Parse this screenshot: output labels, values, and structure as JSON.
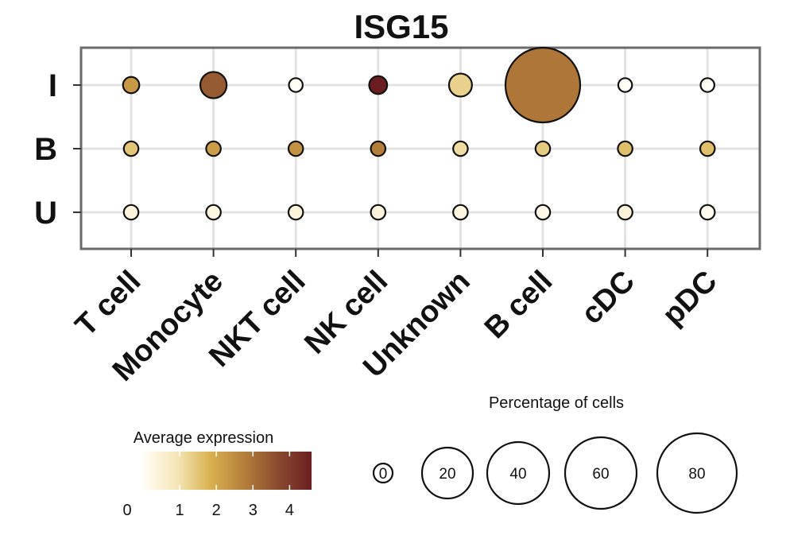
{
  "chart_data": {
    "type": "dot",
    "title": "ISG15",
    "xlabel": "",
    "ylabel": "",
    "categories": [
      "T cell",
      "Monocyte",
      "NKT cell",
      "NK cell",
      "Unknown",
      "B cell",
      "cDC",
      "pDC"
    ],
    "groups": [
      "I",
      "B",
      "U"
    ],
    "grid": true,
    "series": [
      {
        "group": "I",
        "expression": [
          2.3,
          3.4,
          0.0,
          4.6,
          1.3,
          2.9,
          0.0,
          0.0
        ],
        "percentage": [
          10,
          22,
          7,
          12,
          18,
          80,
          7,
          7
        ]
      },
      {
        "group": "B",
        "expression": [
          1.5,
          2.2,
          2.4,
          2.8,
          1.1,
          1.4,
          1.6,
          1.6
        ],
        "percentage": [
          8,
          8,
          8,
          8,
          8,
          8,
          8,
          8
        ]
      },
      {
        "group": "U",
        "expression": [
          0.4,
          0.3,
          0.4,
          0.4,
          0.3,
          0.2,
          0.4,
          0.1
        ],
        "percentage": [
          8,
          8,
          8,
          8,
          8,
          8,
          8,
          8
        ]
      }
    ],
    "color_legend": {
      "title": "Average expression",
      "ticks": [
        0,
        1,
        2,
        3,
        4
      ],
      "range": [
        0,
        4.6
      ],
      "colors": [
        "#fffdf5",
        "#f5e6b8",
        "#d9b14f",
        "#b57f3b",
        "#8a4b2f",
        "#6b1e22"
      ]
    },
    "size_legend": {
      "title": "Percentage of cells",
      "values": [
        0,
        20,
        40,
        60,
        80
      ],
      "labels": [
        "0",
        "20",
        "40",
        "60",
        "80"
      ]
    }
  }
}
